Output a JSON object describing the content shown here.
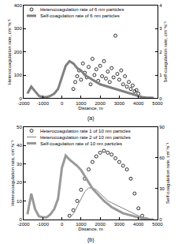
{
  "chart_data": [
    {
      "type": "scatter",
      "x_label": "Distance, m",
      "y_label": "Heterocoagulation rate, cm⁻³s⁻¹",
      "y2_label": "Self-coagulation rate, cm⁻³s⁻¹",
      "annotations": [
        "(a)"
      ],
      "xlim": [
        -2000,
        5000
      ],
      "xticks": [
        -2000,
        -1000,
        0,
        1000,
        2000,
        3000,
        4000,
        5000
      ],
      "ylim": [
        0,
        400
      ],
      "yticks": [
        0,
        100,
        200,
        300,
        400
      ],
      "y2lim": [
        0,
        4
      ],
      "y2ticks": [
        0,
        1,
        2,
        3,
        4
      ],
      "grid": false,
      "legend": "upper left",
      "series": [
        {
          "name": "Heterocoagulation rate of 6 nm particles",
          "type": "scatter",
          "marker": "circle-open",
          "color": "#000000",
          "x": [
            600,
            700,
            800,
            900,
            1000,
            1100,
            1200,
            1300,
            1400,
            1500,
            1600,
            1700,
            1800,
            1900,
            2000,
            2100,
            2200,
            2300,
            2400,
            2500,
            2600,
            2700,
            2800,
            2900,
            3000,
            3100,
            3200,
            3300,
            3400,
            3500,
            3600,
            3700,
            3800,
            3900,
            4000
          ],
          "values": [
            40,
            70,
            95,
            120,
            80,
            150,
            110,
            90,
            135,
            60,
            170,
            100,
            125,
            75,
            140,
            95,
            160,
            85,
            115,
            70,
            130,
            90,
            270,
            105,
            80,
            120,
            60,
            95,
            50,
            70,
            40,
            55,
            30,
            35,
            20
          ]
        },
        {
          "name": "Self-coagulation rate of 6 nm particles",
          "type": "line",
          "line_style": "thick",
          "color": "#808080",
          "axis": "y2",
          "x": [
            -1800,
            -1600,
            -1400,
            -1200,
            -1000,
            -800,
            -600,
            -400,
            -200,
            0,
            200,
            400,
            600,
            800,
            1000,
            1200,
            1400,
            1600,
            1800,
            2000,
            2200,
            2400,
            2600,
            2800,
            3000,
            3200,
            3400,
            3600,
            3800,
            4000,
            4200,
            4400,
            4600,
            4800
          ],
          "values": [
            0.2,
            0.5,
            0.3,
            0.1,
            0.05,
            0.05,
            0.1,
            0.2,
            0.4,
            0.9,
            1.4,
            1.6,
            1.5,
            1.3,
            1.2,
            1.0,
            0.9,
            0.8,
            0.7,
            0.6,
            0.55,
            0.5,
            0.45,
            0.4,
            0.35,
            0.3,
            0.25,
            0.2,
            0.15,
            0.1,
            0.05,
            0.03,
            0.02,
            0.01
          ]
        }
      ]
    },
    {
      "type": "scatter",
      "x_label": "Distance, m",
      "y_label": "Heterocoagulation rate, cm⁻³s⁻¹",
      "y2_label": "Self-coagulation rate, cm⁻³s⁻¹",
      "annotations": [
        "(b)"
      ],
      "xlim": [
        -2000,
        5000
      ],
      "xticks": [
        -2000,
        -1000,
        0,
        1000,
        2000,
        3000,
        4000,
        5000
      ],
      "ylim": [
        0,
        50
      ],
      "yticks": [
        0,
        10,
        20,
        30,
        40,
        50
      ],
      "y2lim": [
        0,
        90
      ],
      "y2ticks": [
        0,
        30,
        60,
        90
      ],
      "grid": false,
      "legend": "upper left",
      "series": [
        {
          "name": "Heterocoagulation rate 1 of 10 nm particles",
          "type": "scatter",
          "marker": "circle-open",
          "color": "#000000",
          "x": [
            400,
            600,
            800,
            1000,
            1200,
            1400,
            1600,
            1800,
            2000,
            2200,
            2400,
            2600,
            2800,
            3000,
            3200,
            3400,
            3600,
            3800,
            4000,
            4200,
            4400
          ],
          "values": [
            2,
            5,
            10,
            16,
            22,
            27,
            31,
            34,
            36,
            37,
            36,
            35,
            33,
            31,
            29,
            27,
            22,
            14,
            6,
            2,
            0
          ]
        },
        {
          "name": "Heterocoagulation rate 2 of 10 nm particles",
          "type": "line",
          "line_style": "thin",
          "color": "#808080",
          "x": [
            400,
            600,
            800,
            1000,
            1200,
            1400,
            1600,
            1800,
            2000,
            2200,
            2400,
            2600,
            2800,
            3000,
            3200,
            3400,
            3600,
            3800,
            4000,
            4200,
            4400
          ],
          "values": [
            1,
            3,
            7,
            11,
            15,
            17,
            17,
            16,
            14,
            12,
            10,
            9,
            8,
            7,
            6,
            5,
            4,
            3,
            2,
            1,
            0
          ]
        },
        {
          "name": "Self-coagulation rate of 10 nm particles",
          "type": "line",
          "line_style": "thick",
          "color": "#999999",
          "axis": "y2",
          "x": [
            -1800,
            -1600,
            -1400,
            -1200,
            -1000,
            -800,
            -600,
            -400,
            -200,
            0,
            200,
            400,
            600,
            800,
            1000,
            1200,
            1400,
            1600,
            1800,
            2000,
            2200,
            2400,
            2600,
            2800,
            3000,
            3200,
            3400,
            3600,
            3800,
            4000,
            4200,
            4400,
            4600,
            4800
          ],
          "values": [
            5,
            25,
            10,
            3,
            2,
            2,
            5,
            10,
            20,
            50,
            62,
            58,
            55,
            52,
            48,
            42,
            36,
            30,
            26,
            22,
            18,
            15,
            12,
            10,
            8,
            6,
            5,
            4,
            3,
            2,
            1,
            1,
            0,
            0
          ]
        }
      ]
    }
  ]
}
